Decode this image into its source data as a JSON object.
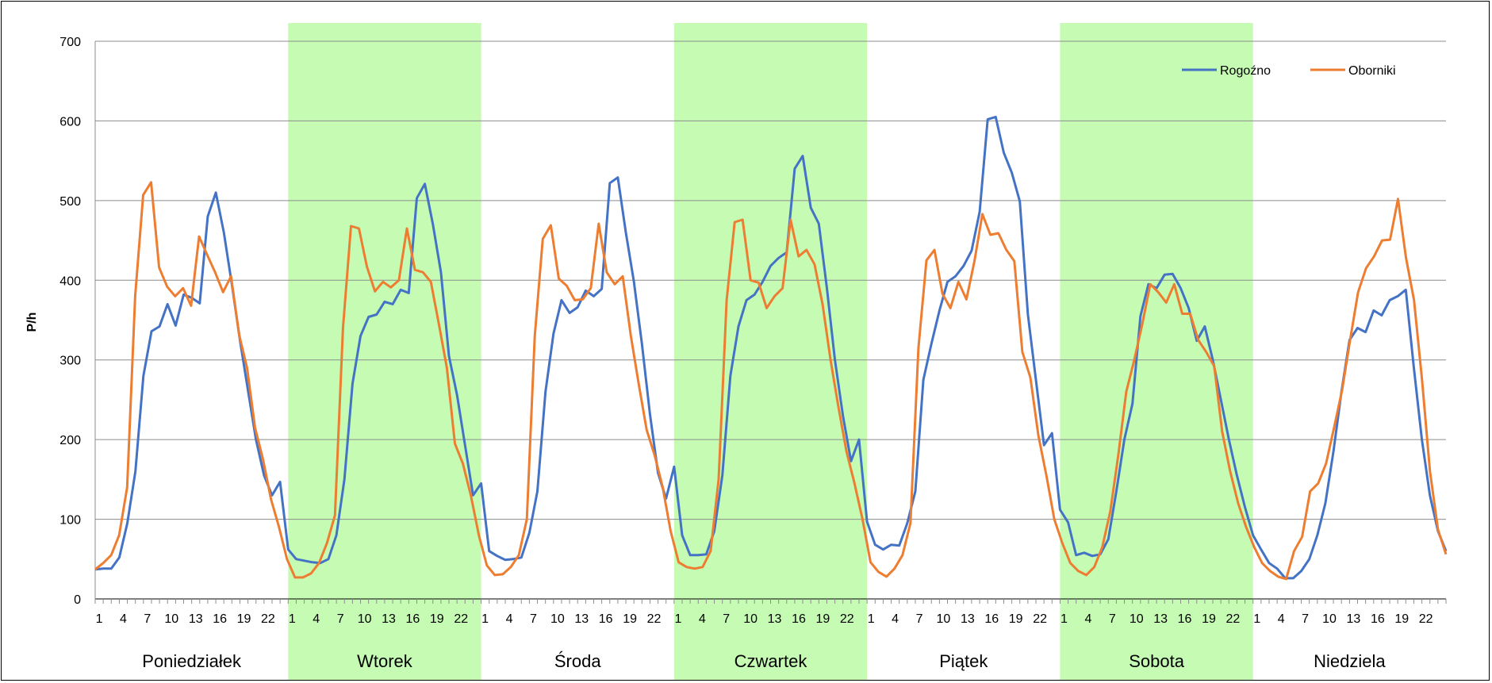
{
  "chart_data": {
    "type": "line",
    "title": "",
    "ylabel": "P/h",
    "xlabel": "",
    "ylim": [
      0,
      700
    ],
    "y_ticks": [
      "0",
      "100",
      "200",
      "300",
      "400",
      "500",
      "600",
      "700"
    ],
    "hour_tick_labels": [
      "1",
      "4",
      "7",
      "10",
      "13",
      "16",
      "19",
      "22"
    ],
    "days": [
      "Poniedziałek",
      "Wtorek",
      "Środa",
      "Czwartek",
      "Piątek",
      "Sobota",
      "Niedziela"
    ],
    "highlighted_days": [
      "Wtorek",
      "Czwartek",
      "Sobota"
    ],
    "highlight_color": "#c6fbb4",
    "grid": true,
    "legend_position": "top-right",
    "series": [
      {
        "name": "Rogoźno",
        "color": "#4472c4",
        "values": [
          37,
          38,
          38,
          52,
          95,
          160,
          280,
          336,
          342,
          370,
          343,
          382,
          378,
          371,
          480,
          510,
          460,
          395,
          325,
          262,
          200,
          155,
          130,
          147,
          62,
          50,
          48,
          46,
          45,
          50,
          80,
          150,
          270,
          330,
          354,
          357,
          373,
          370,
          388,
          384,
          503,
          521,
          470,
          410,
          305,
          256,
          193,
          130,
          145,
          60,
          54,
          49,
          50,
          52,
          83,
          135,
          260,
          333,
          375,
          359,
          366,
          387,
          380,
          389,
          522,
          529,
          460,
          398,
          320,
          232,
          158,
          126,
          166,
          80,
          55,
          55,
          56,
          85,
          155,
          280,
          342,
          375,
          382,
          398,
          418,
          428,
          435,
          540,
          556,
          491,
          471,
          390,
          300,
          230,
          173,
          200,
          97,
          68,
          62,
          68,
          67,
          95,
          135,
          275,
          320,
          362,
          398,
          405,
          418,
          437,
          486,
          602,
          605,
          560,
          535,
          499,
          357,
          275,
          193,
          208,
          112,
          96,
          55,
          58,
          54,
          56,
          75,
          135,
          200,
          245,
          355,
          395,
          390,
          407,
          408,
          390,
          365,
          324,
          342,
          300,
          250,
          200,
          155,
          115,
          80,
          62,
          45,
          38,
          26,
          26,
          35,
          50,
          80,
          120,
          185,
          260,
          325,
          340,
          335,
          362,
          356,
          375,
          380,
          388,
          290,
          200,
          130,
          85,
          60
        ]
      },
      {
        "name": "Oborniki",
        "color": "#ed7d31",
        "values": [
          37,
          45,
          55,
          80,
          140,
          380,
          507,
          523,
          416,
          392,
          380,
          390,
          368,
          455,
          432,
          410,
          385,
          405,
          332,
          290,
          215,
          175,
          125,
          90,
          50,
          27,
          27,
          32,
          45,
          70,
          105,
          340,
          468,
          465,
          417,
          386,
          398,
          391,
          400,
          465,
          413,
          410,
          398,
          345,
          290,
          195,
          170,
          130,
          80,
          42,
          30,
          31,
          40,
          55,
          100,
          330,
          452,
          469,
          402,
          393,
          375,
          376,
          390,
          471,
          410,
          395,
          405,
          331,
          270,
          212,
          180,
          140,
          85,
          46,
          40,
          38,
          40,
          60,
          150,
          375,
          473,
          476,
          400,
          397,
          365,
          380,
          390,
          476,
          430,
          438,
          420,
          370,
          300,
          240,
          185,
          145,
          100,
          46,
          34,
          28,
          38,
          55,
          95,
          315,
          425,
          438,
          383,
          365,
          398,
          376,
          424,
          483,
          457,
          459,
          438,
          424,
          310,
          278,
          205,
          155,
          100,
          70,
          45,
          35,
          30,
          40,
          65,
          110,
          180,
          260,
          300,
          345,
          395,
          385,
          372,
          395,
          358,
          358,
          325,
          310,
          292,
          210,
          160,
          120,
          90,
          65,
          45,
          35,
          28,
          25,
          60,
          78,
          135,
          145,
          170,
          215,
          262,
          325,
          385,
          415,
          430,
          450,
          451,
          502,
          428,
          375,
          275,
          160,
          87,
          56
        ]
      }
    ]
  }
}
